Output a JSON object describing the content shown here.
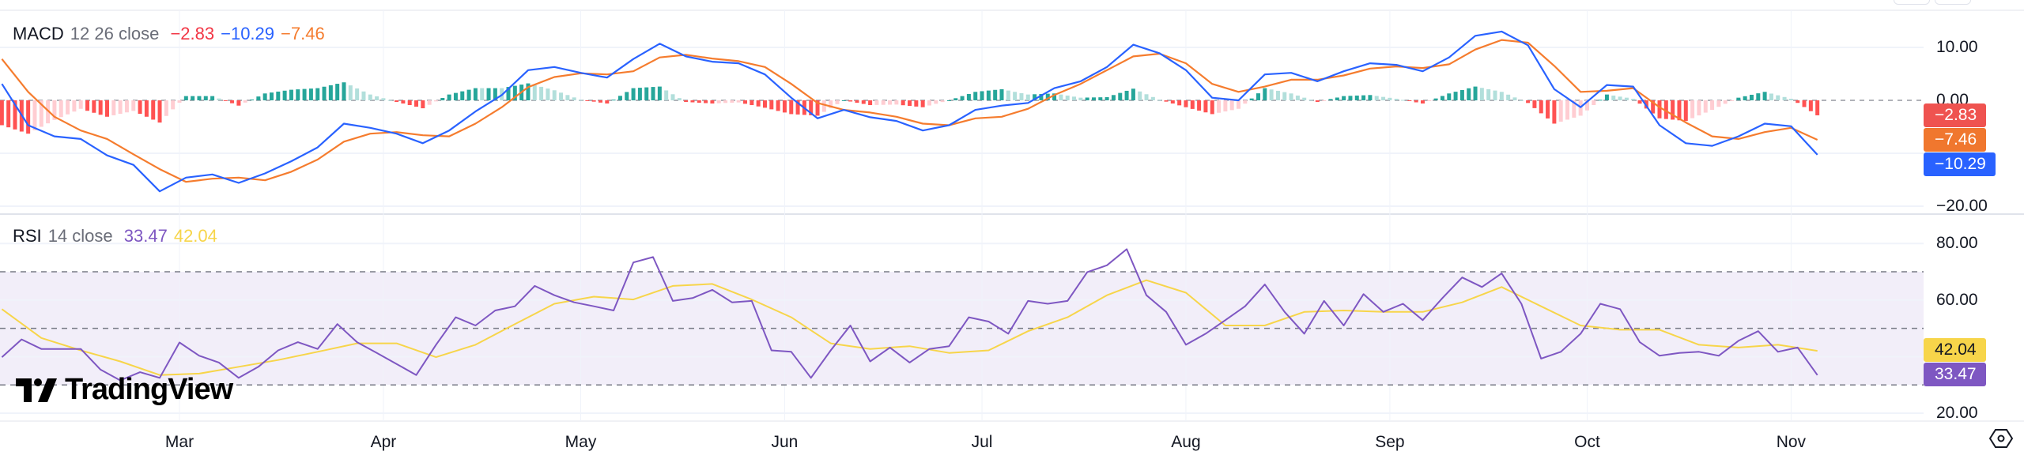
{
  "macd_legend": {
    "name": "MACD",
    "params": "12 26 close",
    "hist": "−2.83",
    "macd": "−10.29",
    "signal": "−7.46"
  },
  "rsi_legend": {
    "name": "RSI",
    "params": "14 close",
    "rsi": "33.47",
    "ma": "42.04"
  },
  "branding": {
    "logo": "TradingView"
  },
  "colors": {
    "macd": "#2962ff",
    "signal": "#f57c2e",
    "hist_pos_up": "#26a69a",
    "hist_pos_down": "#b2dfdb",
    "hist_neg_down": "#ff5252",
    "hist_neg_up": "#ffcdd2",
    "rsi": "#7e57c2",
    "rsi_ma": "#f7d54a",
    "rsi_band": "#7e57c2"
  },
  "chart_data": [
    {
      "type": "line",
      "title": "MACD 12 26 close",
      "ylim": [
        -20,
        13
      ],
      "yticks": [
        "10.00",
        "0.00",
        "−20.00"
      ],
      "ytick_values": [
        10,
        0,
        -20
      ],
      "grid": true,
      "xticks": [
        "Mar",
        "Apr",
        "May",
        "Jun",
        "Jul",
        "Aug",
        "Sep",
        "Oct",
        "Nov"
      ],
      "xtick_dates": [
        "03-01",
        "04-01",
        "05-01",
        "06-01",
        "07-01",
        "08-01",
        "09-01",
        "10-01",
        "11-01"
      ],
      "x": [
        "02-03",
        "02-07",
        "02-11",
        "02-15",
        "02-19",
        "02-23",
        "02-27",
        "03-02",
        "03-06",
        "03-10",
        "03-14",
        "03-18",
        "03-22",
        "03-26",
        "03-30",
        "04-03",
        "04-07",
        "04-11",
        "04-15",
        "04-19",
        "04-23",
        "04-27",
        "05-01",
        "05-05",
        "05-09",
        "05-13",
        "05-17",
        "05-21",
        "05-25",
        "05-29",
        "06-02",
        "06-06",
        "06-10",
        "06-14",
        "06-18",
        "06-22",
        "06-26",
        "06-30",
        "07-04",
        "07-08",
        "07-12",
        "07-16",
        "07-20",
        "07-24",
        "07-28",
        "08-01",
        "08-05",
        "08-09",
        "08-13",
        "08-17",
        "08-21",
        "08-25",
        "08-29",
        "09-02",
        "09-06",
        "09-10",
        "09-14",
        "09-18",
        "09-22",
        "09-26",
        "09-30",
        "10-04",
        "10-08",
        "10-12",
        "10-16",
        "10-20",
        "10-24",
        "10-28",
        "11-01",
        "11-05"
      ],
      "series": [
        {
          "key": "macd",
          "values": [
            3.1,
            -4.7,
            -6.8,
            -7.3,
            -10.4,
            -12.2,
            -17.2,
            -14.6,
            -14.0,
            -15.6,
            -13.8,
            -11.5,
            -8.9,
            -4.4,
            -5.2,
            -6.3,
            -8.1,
            -5.7,
            -2.1,
            1.0,
            5.7,
            6.3,
            5.2,
            4.3,
            7.8,
            10.7,
            8.3,
            7.3,
            7.0,
            4.9,
            0.5,
            -3.4,
            -1.8,
            -3.2,
            -3.9,
            -5.7,
            -4.7,
            -1.8,
            -1.0,
            -0.5,
            2.3,
            3.6,
            6.3,
            10.5,
            8.9,
            5.7,
            0.5,
            0.0,
            4.9,
            5.2,
            3.6,
            5.5,
            7.0,
            6.7,
            5.5,
            8.1,
            12.2,
            13.0,
            10.4,
            2.1,
            -1.3,
            2.9,
            2.6,
            -4.7,
            -8.1,
            -8.6,
            -6.8,
            -4.4,
            -4.9,
            -10.29
          ]
        },
        {
          "key": "signal",
          "values": [
            7.8,
            1.6,
            -3.1,
            -5.7,
            -7.3,
            -10.2,
            -13.0,
            -15.4,
            -14.8,
            -14.6,
            -15.1,
            -13.5,
            -11.2,
            -7.8,
            -6.3,
            -6.0,
            -6.6,
            -6.8,
            -4.4,
            -1.3,
            2.5,
            4.4,
            5.1,
            4.9,
            5.5,
            8.1,
            8.6,
            7.9,
            7.4,
            6.3,
            3.1,
            -0.5,
            -1.8,
            -2.3,
            -3.1,
            -4.4,
            -4.7,
            -3.4,
            -3.1,
            -1.6,
            1.0,
            3.1,
            5.7,
            8.3,
            8.8,
            7.0,
            3.1,
            1.6,
            2.6,
            3.9,
            3.9,
            4.7,
            6.0,
            6.4,
            6.1,
            6.8,
            9.6,
            11.4,
            10.9,
            6.5,
            1.6,
            1.8,
            2.3,
            -1.3,
            -4.2,
            -6.8,
            -7.3,
            -6.0,
            -5.2,
            -7.46
          ]
        }
      ],
      "histogram": "macd minus signal",
      "last_values": {
        "histogram": -2.83,
        "macd": -10.29,
        "signal": -7.46
      }
    },
    {
      "type": "line",
      "title": "RSI 14 close",
      "ylim": [
        17,
        87
      ],
      "yticks": [
        "80.00",
        "60.00",
        "20.00"
      ],
      "ytick_values": [
        80,
        60,
        20
      ],
      "bands": [
        70,
        50,
        30
      ],
      "grid": true,
      "series": [
        {
          "key": "rsi",
          "x": [
            "02-03",
            "02-06",
            "02-09",
            "02-12",
            "02-15",
            "02-18",
            "02-21",
            "02-24",
            "02-27",
            "03-01",
            "03-04",
            "03-07",
            "03-10",
            "03-13",
            "03-16",
            "03-19",
            "03-22",
            "03-25",
            "03-28",
            "03-31",
            "04-03",
            "04-06",
            "04-09",
            "04-12",
            "04-15",
            "04-18",
            "04-21",
            "04-24",
            "04-27",
            "04-30",
            "05-03",
            "05-06",
            "05-09",
            "05-12",
            "05-15",
            "05-18",
            "05-21",
            "05-24",
            "05-27",
            "05-30",
            "06-02",
            "06-05",
            "06-08",
            "06-11",
            "06-14",
            "06-17",
            "06-20",
            "06-23",
            "06-26",
            "06-29",
            "07-02",
            "07-05",
            "07-08",
            "07-11",
            "07-14",
            "07-17",
            "07-20",
            "07-23",
            "07-26",
            "07-29",
            "08-01",
            "08-04",
            "08-07",
            "08-10",
            "08-13",
            "08-16",
            "08-19",
            "08-22",
            "08-25",
            "08-28",
            "08-31",
            "09-03",
            "09-06",
            "09-09",
            "09-12",
            "09-15",
            "09-18",
            "09-21",
            "09-24",
            "09-27",
            "09-30",
            "10-03",
            "10-06",
            "10-09",
            "10-12",
            "10-15",
            "10-18",
            "10-21",
            "10-24",
            "10-27",
            "10-30",
            "11-02",
            "11-05"
          ],
          "values": [
            39.8,
            46.1,
            42.7,
            42.7,
            42.7,
            35.4,
            31.6,
            34.5,
            32.5,
            45.0,
            40.3,
            37.9,
            32.5,
            36.4,
            42.2,
            45.1,
            42.7,
            51.5,
            45.1,
            41.3,
            37.4,
            33.5,
            44.2,
            53.9,
            51.0,
            56.3,
            57.8,
            65.0,
            61.7,
            59.2,
            57.8,
            56.3,
            73.3,
            75.2,
            59.7,
            60.7,
            63.6,
            59.2,
            59.7,
            42.2,
            41.7,
            32.5,
            42.2,
            51.0,
            38.3,
            43.2,
            37.9,
            42.7,
            43.7,
            53.9,
            52.4,
            48.1,
            59.7,
            58.7,
            59.7,
            69.9,
            72.3,
            78.0,
            61.7,
            55.8,
            44.2,
            48.1,
            52.9,
            57.8,
            65.5,
            55.8,
            48.1,
            59.7,
            51.0,
            62.1,
            55.8,
            58.7,
            52.9,
            60.7,
            68.0,
            64.6,
            69.4,
            58.7,
            39.3,
            41.7,
            48.1,
            58.7,
            56.8,
            45.1,
            40.3,
            41.3,
            41.7,
            40.3,
            45.6,
            49.0,
            41.7,
            43.2,
            33.47
          ]
        },
        {
          "key": "rsi_ma",
          "x": [
            "02-03",
            "02-09",
            "02-15",
            "02-21",
            "02-27",
            "03-04",
            "03-10",
            "03-16",
            "03-22",
            "03-28",
            "04-03",
            "04-09",
            "04-15",
            "04-21",
            "04-27",
            "05-03",
            "05-09",
            "05-15",
            "05-21",
            "05-27",
            "06-02",
            "06-08",
            "06-14",
            "06-20",
            "06-26",
            "07-02",
            "07-08",
            "07-14",
            "07-20",
            "07-26",
            "08-01",
            "08-07",
            "08-13",
            "08-19",
            "08-25",
            "08-31",
            "09-06",
            "09-12",
            "09-18",
            "09-24",
            "09-30",
            "10-06",
            "10-12",
            "10-18",
            "10-24",
            "10-30",
            "11-05"
          ],
          "values": [
            56.8,
            46.6,
            42.2,
            38.3,
            33.5,
            34.0,
            36.4,
            38.8,
            41.7,
            44.7,
            44.7,
            39.8,
            44.2,
            51.5,
            58.7,
            61.2,
            60.2,
            65.0,
            65.7,
            60.2,
            53.9,
            44.7,
            42.7,
            43.7,
            41.3,
            42.2,
            49.0,
            53.9,
            61.7,
            67.0,
            62.6,
            51.0,
            51.0,
            55.8,
            56.3,
            55.8,
            55.8,
            59.2,
            64.6,
            57.8,
            51.0,
            49.5,
            49.5,
            44.2,
            43.2,
            44.2,
            42.04
          ]
        }
      ],
      "last_values": {
        "rsi": 33.47,
        "rsi_ma": 42.04
      }
    }
  ]
}
